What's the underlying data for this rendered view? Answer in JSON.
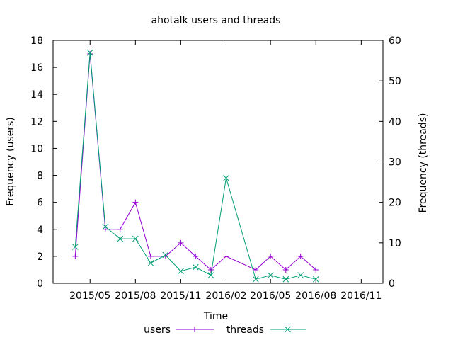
{
  "chart_data": {
    "type": "line",
    "title": "ahotalk users and threads",
    "xlabel": "Time",
    "ylabel": "Frequency (users)",
    "y2label": "Frequency (threads)",
    "xlim": [
      "2015-02-15",
      "2016-12-15"
    ],
    "ylim": [
      0,
      18
    ],
    "y2lim": [
      0,
      60
    ],
    "xticks": [
      "2015/05",
      "2015/08",
      "2015/11",
      "2016/02",
      "2016/05",
      "2016/08",
      "2016/11"
    ],
    "yticks": [
      "0",
      "2",
      "4",
      "6",
      "8",
      "10",
      "12",
      "14",
      "16",
      "18"
    ],
    "y2ticks": [
      "0",
      "10",
      "20",
      "30",
      "40",
      "50",
      "60"
    ],
    "grid": false,
    "legend": "bottom",
    "series": [
      {
        "name": "users",
        "axis": "left",
        "color": "#9400d3",
        "marker": "plus",
        "points": [
          [
            "2015-04-01",
            2
          ],
          [
            "2015-05-01",
            17
          ],
          [
            "2015-06-01",
            4
          ],
          [
            "2015-07-01",
            4
          ],
          [
            "2015-08-01",
            6
          ],
          [
            "2015-09-01",
            2
          ],
          [
            "2015-10-01",
            2
          ],
          [
            "2015-11-01",
            3
          ],
          [
            "2015-12-01",
            2
          ],
          [
            "2016-01-01",
            1
          ],
          [
            "2016-02-01",
            2
          ],
          [
            "2016-04-01",
            1
          ],
          [
            "2016-05-01",
            2
          ],
          [
            "2016-06-01",
            1
          ],
          [
            "2016-07-01",
            2
          ],
          [
            "2016-08-01",
            1
          ]
        ]
      },
      {
        "name": "threads",
        "axis": "right",
        "color": "#009e73",
        "marker": "cross",
        "points": [
          [
            "2015-04-01",
            9
          ],
          [
            "2015-05-01",
            57
          ],
          [
            "2015-06-01",
            14
          ],
          [
            "2015-07-01",
            11
          ],
          [
            "2015-08-01",
            11
          ],
          [
            "2015-09-01",
            5
          ],
          [
            "2015-10-01",
            7
          ],
          [
            "2015-11-01",
            3
          ],
          [
            "2015-12-01",
            4
          ],
          [
            "2016-01-01",
            2
          ],
          [
            "2016-02-01",
            26
          ],
          [
            "2016-04-01",
            1
          ],
          [
            "2016-05-01",
            2
          ],
          [
            "2016-06-01",
            1
          ],
          [
            "2016-07-01",
            2
          ],
          [
            "2016-08-01",
            1
          ]
        ]
      }
    ]
  }
}
